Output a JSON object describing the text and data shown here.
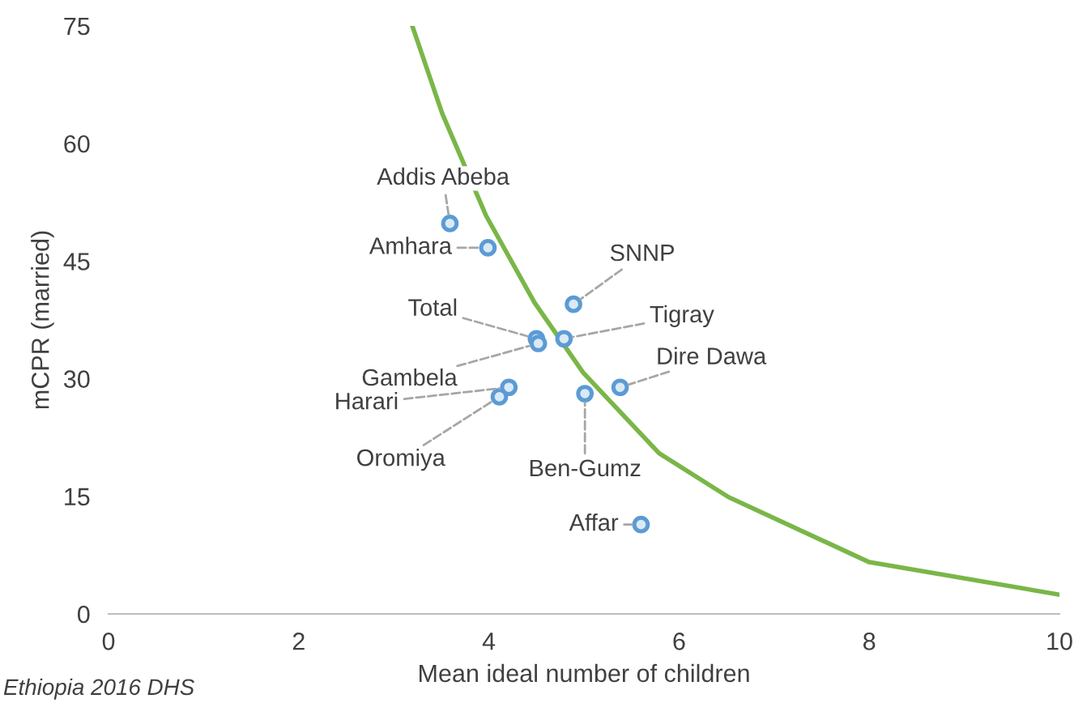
{
  "chart_data": {
    "type": "scatter",
    "xlabel": "Mean ideal number of children",
    "ylabel": "mCPR (married)",
    "xlim": [
      0,
      10
    ],
    "xticks": [
      0,
      2,
      4,
      6,
      8,
      10
    ],
    "ylim": [
      0,
      75
    ],
    "yticks": [
      0,
      15,
      30,
      45,
      60,
      75
    ],
    "grid": false,
    "legend": false,
    "series": [
      {
        "color": "#5b9bd5",
        "marker": "circle",
        "x": [
          3.59,
          3.99,
          4.89,
          4.5,
          4.79,
          4.52,
          4.21,
          4.11,
          5.01,
          5.38,
          5.6
        ],
        "values": [
          49.8,
          46.7,
          39.5,
          35.1,
          35.1,
          34.5,
          28.9,
          27.7,
          28.1,
          28.9,
          11.4
        ]
      },
      {
        "type": "line",
        "color": "#7ab648",
        "marker": "none",
        "line_style": "solid",
        "x": [
          3.2,
          3.51,
          3.97,
          4.48,
          4.99,
          5.79,
          6.52,
          8.0,
          9.98
        ],
        "values": [
          74.8,
          63.8,
          50.8,
          39.7,
          30.8,
          20.5,
          14.9,
          6.6,
          2.5
        ]
      }
    ],
    "annotations": [
      {
        "text": "Addis Abeba",
        "x": 3.59,
        "y": 49.8
      },
      {
        "text": "Amhara",
        "x": 3.99,
        "y": 46.7
      },
      {
        "text": "SNNP",
        "x": 4.89,
        "y": 39.5
      },
      {
        "text": "Total",
        "x": 4.5,
        "y": 35.1
      },
      {
        "text": "Tigray",
        "x": 4.79,
        "y": 35.1
      },
      {
        "text": "Gambela",
        "x": 4.52,
        "y": 34.5
      },
      {
        "text": "Harari",
        "x": 4.21,
        "y": 28.9
      },
      {
        "text": "Oromiya",
        "x": 4.11,
        "y": 27.7
      },
      {
        "text": "Ben-Gumz",
        "x": 5.01,
        "y": 28.1
      },
      {
        "text": "Dire Dawa",
        "x": 5.38,
        "y": 28.9
      },
      {
        "text": "Affar",
        "x": 5.6,
        "y": 11.4
      },
      "Ethiopia 2016 DHS"
    ]
  }
}
